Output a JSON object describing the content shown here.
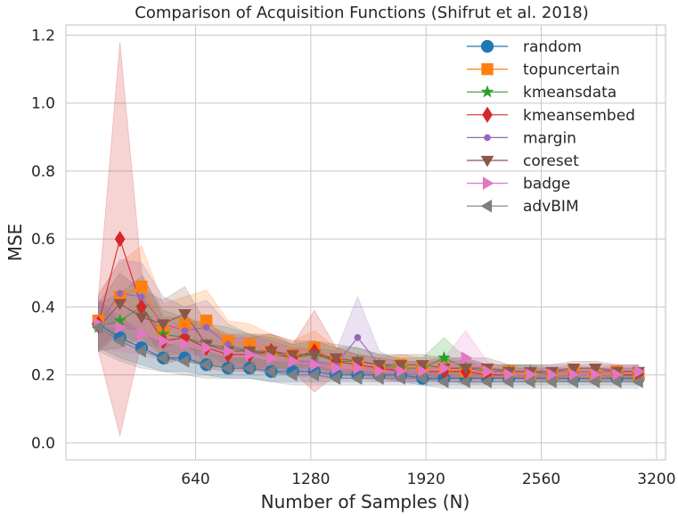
{
  "chart_data": {
    "type": "line",
    "title": "Comparison of Acquisition Functions (Shifrut et al. 2018)",
    "xlabel": "Number of Samples (N)",
    "ylabel": "MSE",
    "xlim": [
      -80,
      3250
    ],
    "ylim": [
      -0.05,
      1.23
    ],
    "xticks": [
      640,
      1280,
      1920,
      2560,
      3200
    ],
    "xtick_labels": [
      "640",
      "1280",
      "1920",
      "2560",
      "3200"
    ],
    "yticks": [
      0.0,
      0.2,
      0.4,
      0.6,
      0.8,
      1.0,
      1.2
    ],
    "ytick_labels": [
      "0.0",
      "0.2",
      "0.4",
      "0.6",
      "0.8",
      "1.0",
      "1.2"
    ],
    "grid": true,
    "legend_position": "top-right",
    "x": [
      100,
      220,
      340,
      460,
      580,
      700,
      820,
      940,
      1060,
      1180,
      1300,
      1420,
      1540,
      1660,
      1780,
      1900,
      2020,
      2140,
      2260,
      2380,
      2500,
      2620,
      2740,
      2860,
      2980,
      3100
    ],
    "series": [
      {
        "name": "random",
        "color": "#1f77b4",
        "marker": "circle",
        "values": [
          0.35,
          0.31,
          0.28,
          0.25,
          0.25,
          0.23,
          0.22,
          0.22,
          0.21,
          0.21,
          0.21,
          0.2,
          0.2,
          0.2,
          0.2,
          0.19,
          0.19,
          0.19,
          0.19,
          0.19,
          0.19,
          0.19,
          0.19,
          0.19,
          0.19,
          0.19
        ],
        "band": [
          0.07,
          0.06,
          0.05,
          0.04,
          0.04,
          0.03,
          0.03,
          0.03,
          0.03,
          0.03,
          0.03,
          0.02,
          0.02,
          0.02,
          0.02,
          0.02,
          0.02,
          0.02,
          0.02,
          0.02,
          0.02,
          0.02,
          0.02,
          0.02,
          0.02,
          0.02
        ]
      },
      {
        "name": "topuncertain",
        "color": "#ff7f0e",
        "marker": "square",
        "values": [
          0.36,
          0.43,
          0.46,
          0.33,
          0.35,
          0.36,
          0.3,
          0.29,
          0.27,
          0.26,
          0.28,
          0.24,
          0.23,
          0.22,
          0.23,
          0.22,
          0.22,
          0.21,
          0.21,
          0.21,
          0.2,
          0.2,
          0.21,
          0.2,
          0.21,
          0.2
        ],
        "band": [
          0.08,
          0.1,
          0.12,
          0.08,
          0.08,
          0.09,
          0.06,
          0.06,
          0.05,
          0.04,
          0.05,
          0.04,
          0.03,
          0.03,
          0.03,
          0.03,
          0.03,
          0.03,
          0.02,
          0.02,
          0.02,
          0.02,
          0.02,
          0.02,
          0.02,
          0.02
        ]
      },
      {
        "name": "kmeansdata",
        "color": "#2ca02c",
        "marker": "star",
        "values": [
          0.34,
          0.36,
          0.4,
          0.32,
          0.31,
          0.29,
          0.28,
          0.27,
          0.26,
          0.25,
          0.26,
          0.24,
          0.24,
          0.23,
          0.22,
          0.22,
          0.25,
          0.22,
          0.21,
          0.21,
          0.21,
          0.2,
          0.2,
          0.2,
          0.2,
          0.2
        ],
        "band": [
          0.07,
          0.08,
          0.09,
          0.07,
          0.06,
          0.06,
          0.06,
          0.05,
          0.05,
          0.04,
          0.04,
          0.04,
          0.04,
          0.03,
          0.03,
          0.03,
          0.06,
          0.03,
          0.02,
          0.02,
          0.02,
          0.02,
          0.02,
          0.02,
          0.02,
          0.02
        ]
      },
      {
        "name": "kmeansembed",
        "color": "#d62728",
        "marker": "diamond",
        "values": [
          0.35,
          0.6,
          0.4,
          0.3,
          0.31,
          0.28,
          0.26,
          0.26,
          0.27,
          0.25,
          0.27,
          0.24,
          0.23,
          0.22,
          0.21,
          0.21,
          0.21,
          0.21,
          0.2,
          0.2,
          0.2,
          0.2,
          0.2,
          0.2,
          0.2,
          0.2
        ],
        "band": [
          0.08,
          0.58,
          0.1,
          0.07,
          0.06,
          0.06,
          0.05,
          0.05,
          0.05,
          0.04,
          0.12,
          0.04,
          0.03,
          0.03,
          0.03,
          0.03,
          0.03,
          0.03,
          0.02,
          0.02,
          0.02,
          0.02,
          0.02,
          0.02,
          0.02,
          0.02
        ]
      },
      {
        "name": "margin",
        "color": "#9467bd",
        "marker": "dot",
        "values": [
          0.35,
          0.44,
          0.43,
          0.35,
          0.33,
          0.34,
          0.29,
          0.27,
          0.25,
          0.24,
          0.24,
          0.23,
          0.31,
          0.23,
          0.21,
          0.21,
          0.22,
          0.22,
          0.21,
          0.21,
          0.21,
          0.21,
          0.21,
          0.21,
          0.21,
          0.21
        ],
        "band": [
          0.08,
          0.1,
          0.1,
          0.08,
          0.07,
          0.08,
          0.06,
          0.05,
          0.05,
          0.04,
          0.04,
          0.04,
          0.12,
          0.04,
          0.03,
          0.03,
          0.03,
          0.03,
          0.02,
          0.02,
          0.02,
          0.02,
          0.02,
          0.02,
          0.02,
          0.02
        ]
      },
      {
        "name": "coreset",
        "color": "#8c564b",
        "marker": "triangle-down",
        "values": [
          0.34,
          0.41,
          0.37,
          0.35,
          0.38,
          0.29,
          0.27,
          0.27,
          0.27,
          0.26,
          0.26,
          0.25,
          0.24,
          0.23,
          0.23,
          0.23,
          0.22,
          0.22,
          0.22,
          0.21,
          0.21,
          0.21,
          0.22,
          0.22,
          0.21,
          0.21
        ],
        "band": [
          0.07,
          0.09,
          0.08,
          0.07,
          0.08,
          0.06,
          0.05,
          0.05,
          0.05,
          0.04,
          0.04,
          0.04,
          0.04,
          0.03,
          0.03,
          0.03,
          0.03,
          0.03,
          0.03,
          0.02,
          0.02,
          0.02,
          0.02,
          0.02,
          0.02,
          0.02
        ]
      },
      {
        "name": "badge",
        "color": "#e377c2",
        "marker": "triangle-right",
        "values": [
          0.35,
          0.34,
          0.32,
          0.3,
          0.29,
          0.28,
          0.27,
          0.26,
          0.25,
          0.24,
          0.23,
          0.22,
          0.22,
          0.21,
          0.21,
          0.21,
          0.22,
          0.25,
          0.21,
          0.2,
          0.2,
          0.2,
          0.2,
          0.2,
          0.2,
          0.21
        ],
        "band": [
          0.07,
          0.07,
          0.06,
          0.06,
          0.05,
          0.05,
          0.05,
          0.05,
          0.04,
          0.04,
          0.04,
          0.03,
          0.03,
          0.03,
          0.03,
          0.03,
          0.03,
          0.08,
          0.03,
          0.02,
          0.02,
          0.02,
          0.02,
          0.02,
          0.02,
          0.02
        ]
      },
      {
        "name": "advBIM",
        "color": "#7f7f7f",
        "marker": "triangle-left",
        "values": [
          0.34,
          0.3,
          0.27,
          0.25,
          0.24,
          0.23,
          0.22,
          0.22,
          0.21,
          0.2,
          0.2,
          0.19,
          0.19,
          0.19,
          0.19,
          0.19,
          0.18,
          0.18,
          0.18,
          0.18,
          0.18,
          0.18,
          0.18,
          0.18,
          0.18,
          0.18
        ],
        "band": [
          0.07,
          0.06,
          0.05,
          0.04,
          0.04,
          0.04,
          0.03,
          0.03,
          0.03,
          0.03,
          0.03,
          0.02,
          0.02,
          0.02,
          0.02,
          0.02,
          0.02,
          0.02,
          0.02,
          0.02,
          0.02,
          0.02,
          0.02,
          0.02,
          0.02,
          0.02
        ]
      }
    ]
  }
}
